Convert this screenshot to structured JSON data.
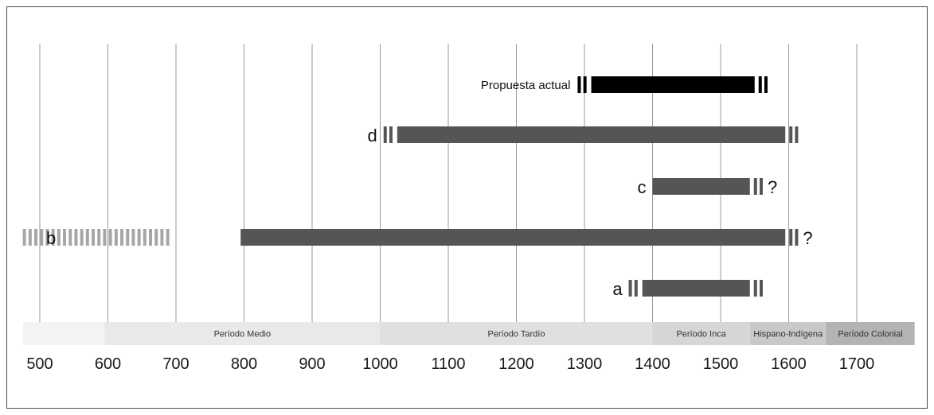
{
  "chart_data": {
    "type": "timeline",
    "title": "",
    "xlabel": "",
    "ylabel": "",
    "x_ticks": [
      500,
      600,
      700,
      800,
      900,
      1000,
      1100,
      1200,
      1300,
      1400,
      1500,
      1600,
      1700
    ],
    "xlim": [
      475,
      1785
    ],
    "grid": true,
    "periods": [
      {
        "label": "",
        "start": 475,
        "end": 595,
        "color": "#f3f3f3"
      },
      {
        "label": "Período Medio",
        "start": 595,
        "end": 1000,
        "color": "#e9e9e9"
      },
      {
        "label": "Período Tardío",
        "start": 1000,
        "end": 1400,
        "color": "#e0e0e0"
      },
      {
        "label": "Período Inca",
        "start": 1400,
        "end": 1543,
        "color": "#d6d6d6"
      },
      {
        "label": "Hispano-Indígena",
        "start": 1543,
        "end": 1655,
        "color": "#c9c9c9"
      },
      {
        "label": "Período Colonial",
        "start": 1655,
        "end": 1785,
        "color": "#b3b3b3"
      }
    ],
    "series": [
      {
        "name": "Propuesta actual",
        "start": 1310,
        "end": 1550,
        "color": "#000000",
        "dashes_before": {
          "from": 1290,
          "count": 2
        },
        "dashes_after": {
          "count": 2
        },
        "question": ""
      },
      {
        "name": "d",
        "start": 1025,
        "end": 1595,
        "color": "#555555",
        "dashes_before": {
          "from": 1005,
          "count": 2
        },
        "dashes_after": {
          "count": 2
        },
        "question": ""
      },
      {
        "name": "c",
        "start": 1400,
        "end": 1543,
        "color": "#555555",
        "dashes_before": null,
        "dashes_after": {
          "count": 2
        },
        "question": "?"
      },
      {
        "name": "b",
        "start": 795,
        "end": 1595,
        "color": "#555555",
        "dashes_before": {
          "from": 475,
          "count": 26,
          "color": "#a6a6a6"
        },
        "dashes_after": {
          "count": 2
        },
        "question": "?"
      },
      {
        "name": "a",
        "start": 1385,
        "end": 1543,
        "color": "#555555",
        "dashes_before": {
          "from": 1365,
          "count": 2
        },
        "dashes_after": {
          "count": 2
        },
        "question": ""
      }
    ]
  }
}
